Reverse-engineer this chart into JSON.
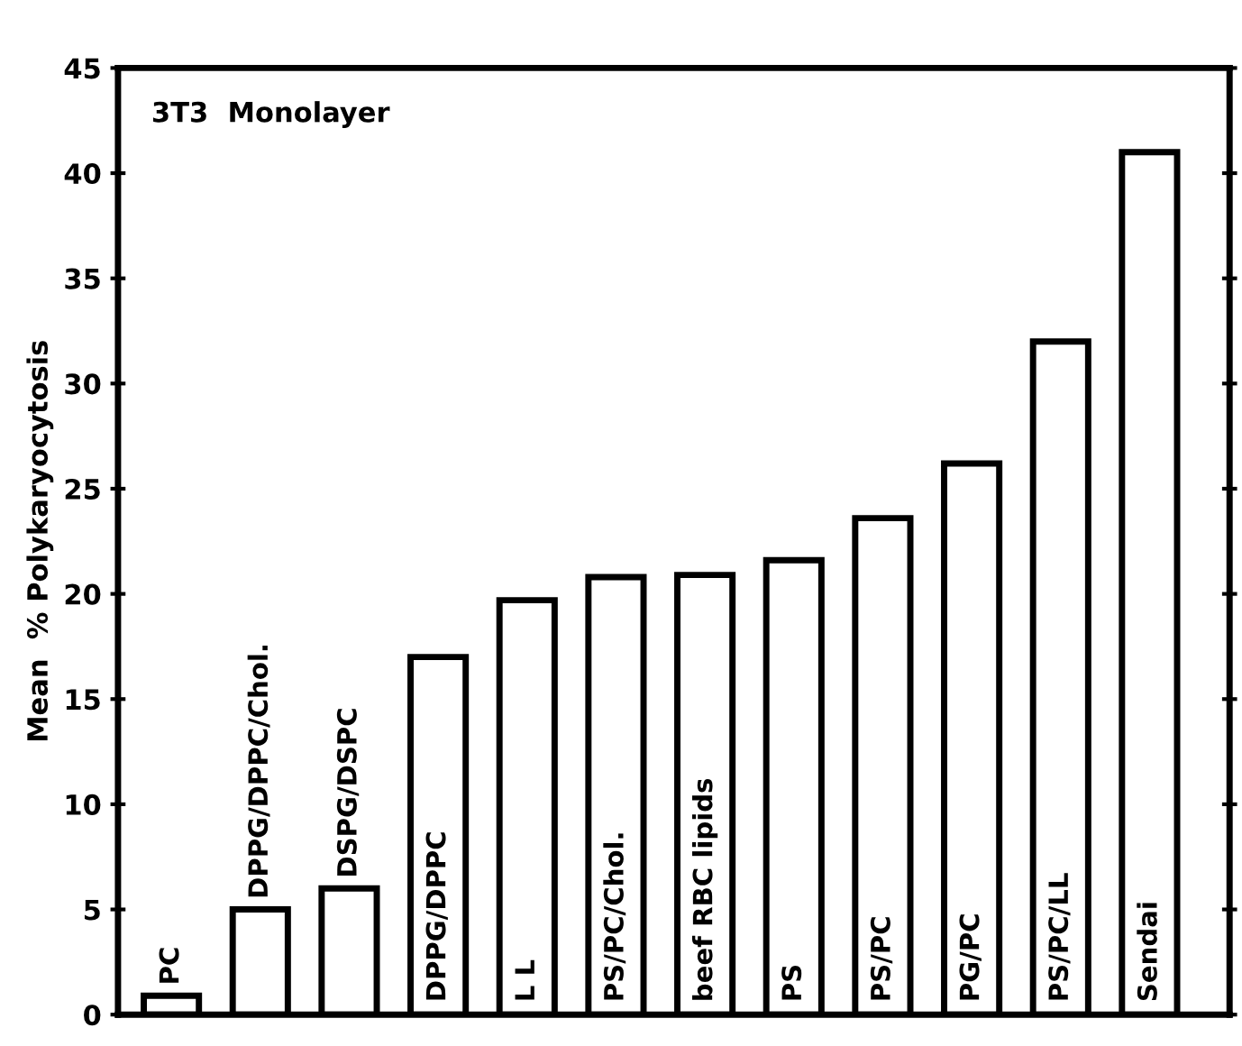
{
  "chart_data": {
    "type": "bar",
    "title": "3T3  Monolayer",
    "ylabel": "Mean  % Polykaryocytosis",
    "categories": [
      "PC",
      "DPPG/DPPC/Chol.",
      "DSPG/DSPC",
      "DPPG/DPPC",
      "L L",
      "PS/PC/Chol.",
      "beef RBC lipids",
      "PS",
      "PS/PC",
      "PG/PC",
      "PS/PC/LL",
      "Sendai"
    ],
    "values": [
      0.9,
      5.0,
      6.0,
      17.0,
      19.7,
      20.8,
      20.9,
      21.6,
      23.6,
      26.2,
      32.0,
      41.0
    ],
    "color": "#ffffff",
    "ylim": [
      0,
      45
    ],
    "yticks": [
      0,
      5,
      10,
      15,
      20,
      25,
      30,
      35,
      40,
      45
    ],
    "grid": false,
    "legend": false
  }
}
